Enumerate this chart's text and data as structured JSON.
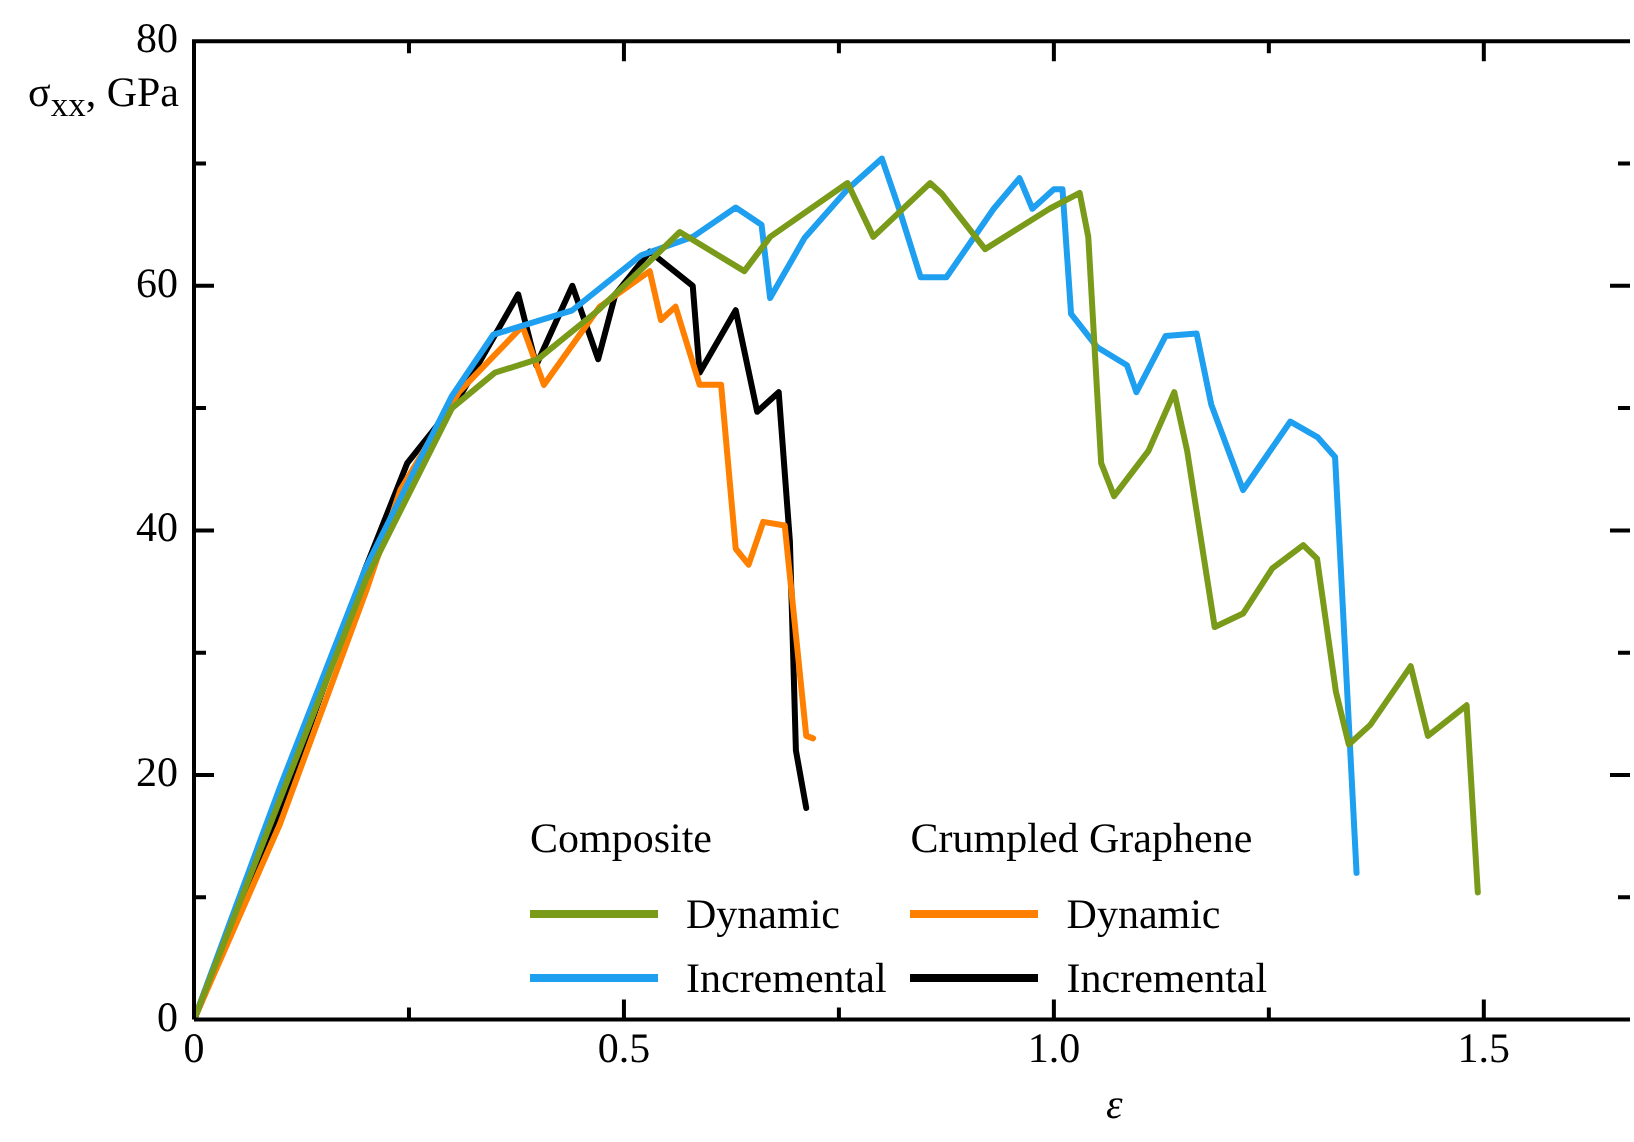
{
  "chart_data": {
    "type": "line",
    "ylabel": "σ$_{xx}$, GPa",
    "xlabel": "ε",
    "annotations": [
      "Composite",
      "Crumpled Graphene"
    ],
    "xlim": [
      0,
      1.67
    ],
    "xticks": [
      0,
      {
        "value": 0.25,
        "label": null
      },
      0.5,
      {
        "value": 0.75,
        "label": null
      },
      {
        "value": 1,
        "label": "1.0"
      },
      {
        "value": 1.25,
        "label": null
      },
      1.5
    ],
    "ylim": [
      0,
      80
    ],
    "yticks": [
      0,
      {
        "value": 10,
        "label": null
      },
      20,
      {
        "value": 30,
        "label": null
      },
      40,
      {
        "value": 50,
        "label": null
      },
      60,
      {
        "value": 70,
        "label": null
      },
      80
    ],
    "grid": false,
    "legend": "bottom",
    "marker": "none",
    "line_style": "solid",
    "series": [
      {
        "name": "Dynamic",
        "color": "#7a9a1a",
        "x": [
          0,
          0.1,
          0.2,
          0.3,
          0.35,
          0.4,
          0.47,
          0.53,
          0.565,
          0.64,
          0.67,
          0.76,
          0.79,
          0.856,
          0.87,
          0.92,
          0.995,
          1.03,
          1.04,
          1.055,
          1.07,
          1.11,
          1.14,
          1.155,
          1.187,
          1.22,
          1.254,
          1.29,
          1.306,
          1.328,
          1.343,
          1.368,
          1.415,
          1.435,
          1.48,
          1.493
        ],
        "values": [
          0,
          18,
          36,
          50,
          52.9,
          54,
          58,
          62,
          64.4,
          61.2,
          64,
          68.4,
          64,
          68.4,
          67.5,
          63,
          66.3,
          67.6,
          64,
          45.5,
          42.8,
          46.5,
          51.3,
          46.5,
          32.1,
          33.2,
          36.9,
          38.8,
          37.7,
          26.8,
          22.5,
          24.1,
          28.9,
          23.2,
          25.7,
          10.4
        ]
      },
      {
        "name": "Incremental",
        "color": "#1e9ff0",
        "x": [
          0,
          0.1,
          0.2,
          0.3,
          0.348,
          0.44,
          0.52,
          0.58,
          0.63,
          0.66,
          0.67,
          0.71,
          0.76,
          0.8,
          0.82,
          0.845,
          0.875,
          0.93,
          0.96,
          0.975,
          1.0,
          1.01,
          1.02,
          1.05,
          1.085,
          1.096,
          1.13,
          1.166,
          1.183,
          1.22,
          1.275,
          1.307,
          1.327,
          1.352
        ],
        "values": [
          0,
          19,
          37,
          51,
          56,
          58,
          62.5,
          64,
          66.4,
          65,
          59,
          63.9,
          67.9,
          70.4,
          66.3,
          60.7,
          60.7,
          66.3,
          68.8,
          66.3,
          67.9,
          67.9,
          57.7,
          55,
          53.5,
          51.3,
          55.9,
          56.1,
          50.3,
          43.3,
          48.9,
          47.6,
          46,
          12
        ]
      },
      {
        "name": "Dynamic",
        "color": "#ff8000",
        "x": [
          0,
          0.1,
          0.2,
          0.24,
          0.308,
          0.382,
          0.407,
          0.472,
          0.53,
          0.543,
          0.56,
          0.588,
          0.613,
          0.63,
          0.645,
          0.662,
          0.687,
          0.712,
          0.72
        ],
        "values": [
          0,
          16,
          35,
          43.3,
          51.3,
          56.7,
          51.9,
          58.3,
          61.2,
          57.2,
          58.3,
          51.9,
          51.9,
          38.5,
          37.2,
          40.7,
          40.4,
          23.2,
          23
        ]
      },
      {
        "name": "Incremental",
        "color": "#000000",
        "x": [
          0,
          0.1,
          0.2,
          0.248,
          0.308,
          0.377,
          0.398,
          0.44,
          0.47,
          0.49,
          0.53,
          0.58,
          0.588,
          0.63,
          0.655,
          0.68,
          0.693,
          0.7,
          0.712
        ],
        "values": [
          0,
          17,
          37,
          45.5,
          50.8,
          59.3,
          53.5,
          60,
          54,
          59.3,
          62.8,
          60,
          52.9,
          58,
          49.7,
          51.3,
          39.1,
          22,
          17.3
        ]
      }
    ]
  }
}
